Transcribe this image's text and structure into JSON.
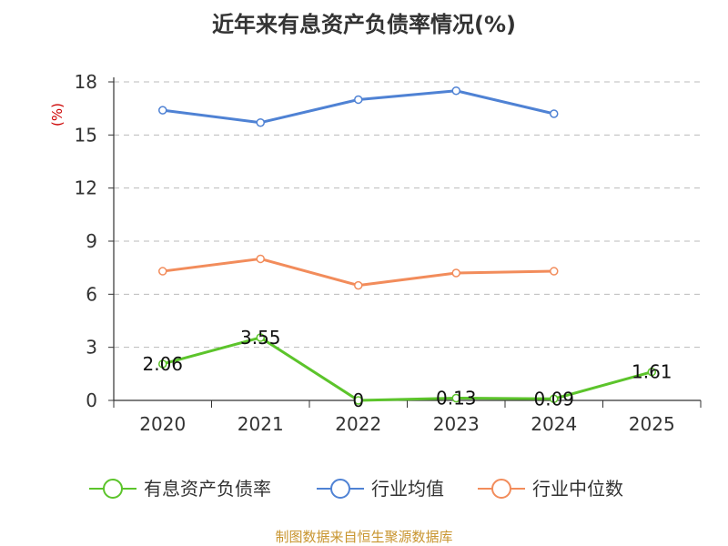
{
  "chart_data": {
    "type": "line",
    "title": "近年来有息资产负债率情况(%)",
    "ylabel": "(%)",
    "xlabel": "",
    "categories": [
      "2020",
      "2021",
      "2022",
      "2023",
      "2024",
      "2025"
    ],
    "ylim": [
      0,
      18
    ],
    "yticks": [
      0,
      3,
      6,
      9,
      12,
      15,
      18
    ],
    "grid": true,
    "legend_position": "bottom",
    "series": [
      {
        "name": "有息资产负债率",
        "color": "#5cc42b",
        "values": [
          2.06,
          3.55,
          0,
          0.13,
          0.09,
          1.61
        ],
        "labels": [
          "2.06",
          "3.55",
          "0",
          "0.13",
          "0.09",
          "1.61"
        ],
        "show_labels": true
      },
      {
        "name": "行业均值",
        "color": "#4f82d4",
        "values": [
          16.4,
          15.7,
          17.0,
          17.5,
          16.2,
          null
        ],
        "show_labels": false
      },
      {
        "name": "行业中位数",
        "color": "#f28c5b",
        "values": [
          7.3,
          8.0,
          6.5,
          7.2,
          7.3,
          null
        ],
        "show_labels": false
      }
    ]
  },
  "footer": {
    "source": "制图数据来自恒生聚源数据库"
  }
}
